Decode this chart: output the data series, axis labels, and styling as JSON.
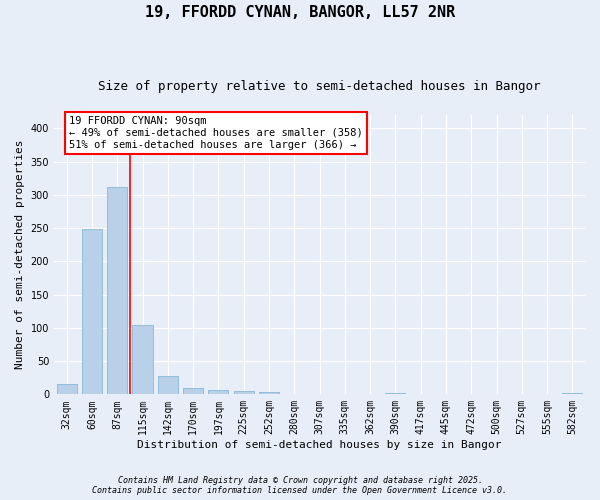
{
  "title": "19, FFORDD CYNAN, BANGOR, LL57 2NR",
  "subtitle": "Size of property relative to semi-detached houses in Bangor",
  "xlabel": "Distribution of semi-detached houses by size in Bangor",
  "ylabel": "Number of semi-detached properties",
  "categories": [
    "32sqm",
    "60sqm",
    "87sqm",
    "115sqm",
    "142sqm",
    "170sqm",
    "197sqm",
    "225sqm",
    "252sqm",
    "280sqm",
    "307sqm",
    "335sqm",
    "362sqm",
    "390sqm",
    "417sqm",
    "445sqm",
    "472sqm",
    "500sqm",
    "527sqm",
    "555sqm",
    "582sqm"
  ],
  "values": [
    15,
    249,
    312,
    105,
    27,
    10,
    7,
    5,
    4,
    0,
    0,
    0,
    0,
    2,
    0,
    0,
    0,
    0,
    0,
    0,
    2
  ],
  "bar_color": "#b8d0e8",
  "bar_edge_color": "#7aafd4",
  "property_line_x": 2.5,
  "annotation_text_line1": "19 FFORDD CYNAN: 90sqm",
  "annotation_text_line2": "← 49% of semi-detached houses are smaller (358)",
  "annotation_text_line3": "51% of semi-detached houses are larger (366) →",
  "ylim": [
    0,
    420
  ],
  "yticks": [
    0,
    50,
    100,
    150,
    200,
    250,
    300,
    350,
    400
  ],
  "footnote1": "Contains HM Land Registry data © Crown copyright and database right 2025.",
  "footnote2": "Contains public sector information licensed under the Open Government Licence v3.0.",
  "background_color": "#e8eef8",
  "grid_color": "#ffffff",
  "title_fontsize": 11,
  "subtitle_fontsize": 9,
  "axis_label_fontsize": 8,
  "tick_fontsize": 7,
  "annotation_fontsize": 7.5,
  "footnote_fontsize": 6
}
